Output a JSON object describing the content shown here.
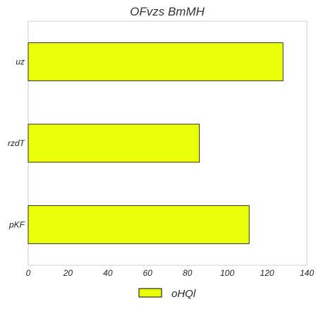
{
  "chart_data": {
    "type": "bar",
    "orientation": "horizontal",
    "title": "OFvzs BmMH",
    "categories": [
      "pKF",
      "rzdT",
      "uz"
    ],
    "series": [
      {
        "name": "oHQl",
        "values": [
          111,
          86,
          128
        ],
        "color": "#eaff0a",
        "edge_color": "#000000"
      }
    ],
    "xlim": [
      0,
      140
    ],
    "x_ticks": [
      "0",
      "20",
      "40",
      "60",
      "80",
      "100",
      "120",
      "140"
    ],
    "grid": false,
    "legend_position": "bottom-center"
  }
}
